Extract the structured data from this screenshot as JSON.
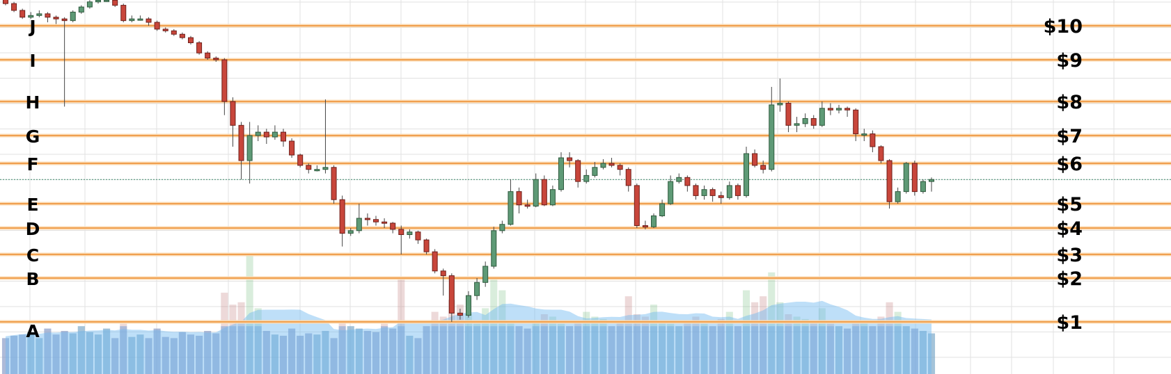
{
  "chart_data": {
    "type": "candlestick",
    "title": "",
    "xlabel": "",
    "ylabel": "",
    "grid": true,
    "colors": {
      "up": "#5e9a76",
      "up_border": "#2f5a3e",
      "down": "#c8463b",
      "down_border": "#6e1f1a",
      "level_line": "#f0a050",
      "volume_ma": "#7cc0f0",
      "current_price_line": "#3a8a6a"
    },
    "levels": [
      {
        "letter": "A",
        "price": "$1",
        "value": 1
      },
      {
        "letter": "B",
        "price": "$2",
        "value": 2
      },
      {
        "letter": "C",
        "price": "$3",
        "value": 3
      },
      {
        "letter": "D",
        "price": "$4",
        "value": 4
      },
      {
        "letter": "E",
        "price": "$5",
        "value": 5
      },
      {
        "letter": "F",
        "price": "$6",
        "value": 6
      },
      {
        "letter": "G",
        "price": "$7",
        "value": 7
      },
      {
        "letter": "H",
        "price": "$8",
        "value": 8
      },
      {
        "letter": "I",
        "price": "$9",
        "value": 9
      },
      {
        "letter": "J",
        "price": "$10",
        "value": 10
      }
    ],
    "current_price": 5.6,
    "candles_ohlc": [
      [
        10.8,
        10.85,
        10.6,
        10.65
      ],
      [
        10.65,
        10.7,
        10.4,
        10.45
      ],
      [
        10.45,
        10.5,
        10.2,
        10.25
      ],
      [
        10.25,
        10.4,
        10.2,
        10.3
      ],
      [
        10.3,
        10.45,
        10.25,
        10.35
      ],
      [
        10.35,
        10.4,
        10.1,
        10.25
      ],
      [
        10.25,
        10.3,
        10.05,
        10.2
      ],
      [
        10.2,
        10.25,
        7.85,
        10.15
      ],
      [
        10.15,
        10.45,
        10.1,
        10.4
      ],
      [
        10.4,
        10.6,
        10.35,
        10.55
      ],
      [
        10.55,
        10.75,
        10.5,
        10.7
      ],
      [
        10.7,
        10.85,
        10.65,
        10.75
      ],
      [
        10.75,
        10.85,
        10.7,
        10.75
      ],
      [
        10.75,
        10.8,
        10.55,
        10.6
      ],
      [
        10.6,
        10.65,
        10.1,
        10.15
      ],
      [
        10.15,
        10.3,
        10.1,
        10.2
      ],
      [
        10.2,
        10.3,
        10.15,
        10.2
      ],
      [
        10.2,
        10.25,
        10.0,
        10.1
      ],
      [
        10.1,
        10.15,
        9.85,
        9.9
      ],
      [
        9.9,
        9.95,
        9.8,
        9.85
      ],
      [
        9.85,
        9.9,
        9.7,
        9.75
      ],
      [
        9.75,
        9.8,
        9.6,
        9.65
      ],
      [
        9.65,
        9.7,
        9.45,
        9.5
      ],
      [
        9.5,
        9.55,
        9.15,
        9.2
      ],
      [
        9.2,
        9.25,
        9.0,
        9.05
      ],
      [
        9.05,
        9.1,
        8.95,
        9.0
      ],
      [
        9.0,
        9.05,
        7.6,
        8.0
      ],
      [
        8.0,
        8.1,
        6.6,
        7.3
      ],
      [
        7.3,
        7.4,
        5.6,
        6.1
      ],
      [
        6.1,
        7.4,
        5.5,
        7.0
      ],
      [
        7.0,
        7.3,
        6.8,
        7.1
      ],
      [
        7.1,
        7.2,
        6.7,
        6.95
      ],
      [
        6.95,
        7.3,
        6.85,
        7.1
      ],
      [
        7.1,
        7.2,
        6.6,
        6.8
      ],
      [
        6.8,
        6.9,
        6.2,
        6.3
      ],
      [
        6.3,
        6.35,
        5.9,
        5.95
      ],
      [
        5.95,
        6.0,
        5.75,
        5.85
      ],
      [
        5.85,
        5.95,
        5.8,
        5.85
      ],
      [
        5.85,
        8.05,
        5.75,
        5.9
      ],
      [
        5.9,
        5.95,
        5.0,
        5.1
      ],
      [
        5.1,
        5.2,
        3.3,
        3.8
      ],
      [
        3.8,
        4.0,
        3.7,
        3.9
      ],
      [
        3.9,
        5.0,
        3.8,
        4.4
      ],
      [
        4.4,
        4.6,
        4.1,
        4.35
      ],
      [
        4.35,
        4.5,
        4.1,
        4.25
      ],
      [
        4.25,
        4.4,
        4.0,
        4.2
      ],
      [
        4.2,
        4.25,
        3.8,
        3.95
      ],
      [
        3.95,
        4.1,
        3.0,
        3.75
      ],
      [
        3.75,
        3.95,
        3.6,
        3.85
      ],
      [
        3.85,
        3.9,
        3.4,
        3.55
      ],
      [
        3.55,
        3.6,
        3.0,
        3.1
      ],
      [
        3.1,
        3.2,
        2.2,
        2.3
      ],
      [
        2.3,
        2.4,
        1.6,
        2.1
      ],
      [
        2.1,
        2.2,
        1.0,
        1.2
      ],
      [
        1.2,
        1.3,
        1.05,
        1.15
      ],
      [
        1.15,
        1.7,
        1.1,
        1.6
      ],
      [
        1.6,
        2.0,
        1.5,
        1.9
      ],
      [
        1.9,
        2.7,
        1.8,
        2.5
      ],
      [
        2.5,
        4.05,
        2.4,
        3.9
      ],
      [
        3.9,
        4.3,
        3.8,
        4.15
      ],
      [
        4.15,
        5.6,
        4.1,
        5.3
      ],
      [
        5.3,
        5.4,
        4.6,
        4.95
      ],
      [
        4.95,
        5.1,
        4.8,
        4.9
      ],
      [
        4.9,
        5.75,
        4.85,
        5.6
      ],
      [
        5.6,
        5.7,
        4.9,
        4.95
      ],
      [
        4.95,
        5.45,
        4.9,
        5.35
      ],
      [
        5.35,
        6.4,
        5.3,
        6.2
      ],
      [
        6.2,
        6.4,
        5.9,
        6.1
      ],
      [
        6.1,
        6.15,
        5.4,
        5.55
      ],
      [
        5.55,
        5.85,
        5.5,
        5.7
      ],
      [
        5.7,
        6.05,
        5.65,
        5.9
      ],
      [
        5.9,
        6.15,
        5.85,
        6.0
      ],
      [
        6.0,
        6.2,
        5.9,
        5.95
      ],
      [
        5.95,
        6.0,
        5.7,
        5.85
      ],
      [
        5.85,
        5.9,
        5.3,
        5.45
      ],
      [
        5.45,
        5.5,
        4.0,
        4.1
      ],
      [
        4.1,
        4.3,
        3.95,
        4.05
      ],
      [
        4.05,
        4.6,
        4.0,
        4.5
      ],
      [
        4.5,
        5.1,
        4.45,
        5.0
      ],
      [
        5.0,
        5.7,
        4.95,
        5.55
      ],
      [
        5.55,
        5.75,
        5.5,
        5.65
      ],
      [
        5.65,
        5.7,
        5.3,
        5.45
      ],
      [
        5.45,
        5.5,
        5.1,
        5.2
      ],
      [
        5.2,
        5.45,
        5.1,
        5.35
      ],
      [
        5.35,
        5.4,
        5.05,
        5.2
      ],
      [
        5.2,
        5.3,
        5.0,
        5.15
      ],
      [
        5.15,
        5.55,
        5.1,
        5.45
      ],
      [
        5.45,
        5.5,
        5.1,
        5.2
      ],
      [
        5.2,
        6.6,
        5.15,
        6.35
      ],
      [
        6.35,
        6.5,
        5.9,
        5.95
      ],
      [
        5.95,
        6.1,
        5.75,
        5.85
      ],
      [
        5.85,
        8.35,
        5.8,
        7.9
      ],
      [
        7.9,
        8.55,
        7.7,
        7.95
      ],
      [
        7.95,
        8.0,
        7.1,
        7.3
      ],
      [
        7.3,
        7.55,
        7.1,
        7.35
      ],
      [
        7.35,
        7.65,
        7.25,
        7.5
      ],
      [
        7.5,
        7.6,
        7.2,
        7.3
      ],
      [
        7.3,
        8.0,
        7.25,
        7.8
      ],
      [
        7.8,
        7.95,
        7.6,
        7.75
      ],
      [
        7.75,
        7.9,
        7.65,
        7.8
      ],
      [
        7.8,
        7.85,
        7.55,
        7.75
      ],
      [
        7.75,
        7.8,
        6.8,
        7.05
      ],
      [
        7.05,
        7.2,
        6.8,
        7.05
      ],
      [
        7.05,
        7.15,
        6.4,
        6.6
      ],
      [
        6.6,
        6.65,
        6.0,
        6.1
      ],
      [
        6.1,
        6.15,
        4.8,
        5.05
      ],
      [
        5.05,
        5.4,
        5.0,
        5.3
      ],
      [
        5.3,
        6.05,
        5.25,
        6.0
      ],
      [
        6.0,
        6.1,
        5.2,
        5.3
      ],
      [
        5.3,
        5.6,
        5.25,
        5.55
      ],
      [
        5.55,
        5.65,
        5.3,
        5.6
      ]
    ],
    "volume": [
      30,
      32,
      33,
      35,
      30,
      38,
      33,
      36,
      34,
      40,
      35,
      33,
      38,
      30,
      42,
      31,
      33,
      30,
      38,
      31,
      30,
      35,
      33,
      32,
      36,
      34,
      68,
      58,
      60,
      100,
      55,
      36,
      33,
      32,
      38,
      32,
      34,
      33,
      36,
      30,
      45,
      40,
      38,
      36,
      35,
      42,
      38,
      80,
      32,
      30,
      40,
      52,
      48,
      62,
      58,
      50,
      42,
      55,
      80,
      70,
      44,
      40,
      38,
      45,
      50,
      48,
      42,
      40,
      44,
      52,
      48,
      46,
      40,
      44,
      65,
      50,
      48,
      58,
      45,
      42,
      40,
      44,
      48,
      42,
      40,
      46,
      52,
      40,
      70,
      60,
      65,
      85,
      60,
      50,
      48,
      46,
      44,
      55,
      42,
      40,
      38,
      42,
      44,
      40,
      48,
      60,
      52,
      40,
      38,
      36,
      34
    ]
  }
}
